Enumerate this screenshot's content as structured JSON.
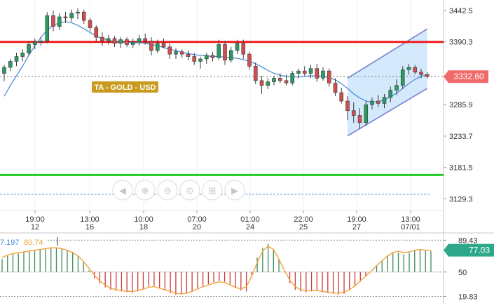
{
  "chart_data": [
    {
      "type": "candlestick",
      "overlay_label": "TA - GOLD - USD",
      "y_ticks": [
        3442.5,
        3390.3,
        3285.9,
        3233.7,
        3181.5,
        3129.3
      ],
      "ylim": [
        3110,
        3460
      ],
      "last_price": "3332.60",
      "resistance_level": 3390.3,
      "support_level": 3169,
      "dashed_level": 3137,
      "x_tick_labels": [
        {
          "time": "19:00",
          "day": "12"
        },
        {
          "time": "13:00",
          "day": "16"
        },
        {
          "time": "10:00",
          "day": "18"
        },
        {
          "time": "07:00",
          "day": "20"
        },
        {
          "time": "01:00",
          "day": "24"
        },
        {
          "time": "22:00",
          "day": "25"
        },
        {
          "time": "19:00",
          "day": "27"
        },
        {
          "time": "13:00",
          "day": "07/01"
        }
      ],
      "ohlc": [
        [
          3338,
          3352,
          3325,
          3348
        ],
        [
          3348,
          3362,
          3342,
          3358
        ],
        [
          3358,
          3372,
          3350,
          3366
        ],
        [
          3366,
          3378,
          3358,
          3372
        ],
        [
          3372,
          3392,
          3368,
          3386
        ],
        [
          3386,
          3396,
          3378,
          3390
        ],
        [
          3390,
          3398,
          3384,
          3392
        ],
        [
          3392,
          3440,
          3388,
          3434
        ],
        [
          3434,
          3442,
          3408,
          3416
        ],
        [
          3416,
          3438,
          3410,
          3432
        ],
        [
          3432,
          3440,
          3422,
          3430
        ],
        [
          3430,
          3444,
          3424,
          3438
        ],
        [
          3438,
          3446,
          3428,
          3440
        ],
        [
          3440,
          3444,
          3420,
          3426
        ],
        [
          3426,
          3430,
          3408,
          3414
        ],
        [
          3414,
          3418,
          3390,
          3398
        ],
        [
          3398,
          3406,
          3384,
          3392
        ],
        [
          3392,
          3402,
          3386,
          3396
        ],
        [
          3396,
          3400,
          3382,
          3388
        ],
        [
          3388,
          3398,
          3380,
          3394
        ],
        [
          3394,
          3398,
          3382,
          3386
        ],
        [
          3386,
          3396,
          3380,
          3390
        ],
        [
          3390,
          3402,
          3384,
          3396
        ],
        [
          3396,
          3404,
          3386,
          3392
        ],
        [
          3392,
          3398,
          3368,
          3376
        ],
        [
          3376,
          3394,
          3372,
          3388
        ],
        [
          3388,
          3396,
          3380,
          3382
        ],
        [
          3382,
          3388,
          3362,
          3370
        ],
        [
          3370,
          3380,
          3362,
          3374
        ],
        [
          3374,
          3378,
          3364,
          3370
        ],
        [
          3370,
          3376,
          3360,
          3366
        ],
        [
          3366,
          3372,
          3352,
          3358
        ],
        [
          3358,
          3366,
          3346,
          3362
        ],
        [
          3362,
          3372,
          3354,
          3368
        ],
        [
          3368,
          3374,
          3358,
          3364
        ],
        [
          3364,
          3394,
          3360,
          3386
        ],
        [
          3386,
          3392,
          3352,
          3360
        ],
        [
          3360,
          3382,
          3356,
          3376
        ],
        [
          3376,
          3394,
          3370,
          3388
        ],
        [
          3388,
          3394,
          3362,
          3370
        ],
        [
          3370,
          3374,
          3344,
          3350
        ],
        [
          3350,
          3356,
          3320,
          3326
        ],
        [
          3326,
          3334,
          3304,
          3318
        ],
        [
          3318,
          3330,
          3312,
          3324
        ],
        [
          3324,
          3334,
          3318,
          3330
        ],
        [
          3330,
          3338,
          3322,
          3326
        ],
        [
          3326,
          3336,
          3318,
          3322
        ],
        [
          3322,
          3342,
          3318,
          3338
        ],
        [
          3338,
          3346,
          3330,
          3342
        ],
        [
          3342,
          3350,
          3334,
          3338
        ],
        [
          3338,
          3352,
          3330,
          3346
        ],
        [
          3346,
          3354,
          3324,
          3330
        ],
        [
          3330,
          3348,
          3326,
          3342
        ],
        [
          3342,
          3346,
          3316,
          3322
        ],
        [
          3322,
          3330,
          3300,
          3306
        ],
        [
          3306,
          3314,
          3288,
          3292
        ],
        [
          3292,
          3300,
          3260,
          3276
        ],
        [
          3276,
          3290,
          3256,
          3268
        ],
        [
          3268,
          3280,
          3246,
          3256
        ],
        [
          3256,
          3292,
          3250,
          3286
        ],
        [
          3286,
          3298,
          3278,
          3292
        ],
        [
          3292,
          3302,
          3282,
          3288
        ],
        [
          3288,
          3304,
          3280,
          3298
        ],
        [
          3298,
          3316,
          3290,
          3310
        ],
        [
          3310,
          3328,
          3302,
          3318
        ],
        [
          3318,
          3350,
          3312,
          3344
        ],
        [
          3344,
          3354,
          3336,
          3348
        ],
        [
          3348,
          3352,
          3336,
          3340
        ],
        [
          3340,
          3346,
          3330,
          3336
        ],
        [
          3336,
          3340,
          3330,
          3333
        ]
      ],
      "moving_average": [
        3300,
        3318,
        3334,
        3350,
        3368,
        3384,
        3398,
        3410,
        3418,
        3422,
        3424,
        3422,
        3418,
        3412,
        3406,
        3400,
        3396,
        3393,
        3391,
        3390,
        3389,
        3389,
        3389,
        3388,
        3386,
        3384,
        3381,
        3378,
        3376,
        3373,
        3371,
        3369,
        3368,
        3367,
        3366,
        3366,
        3365,
        3364,
        3363,
        3361,
        3358,
        3354,
        3349,
        3343,
        3338,
        3335,
        3333,
        3332,
        3332,
        3333,
        3334,
        3334,
        3333,
        3331,
        3327,
        3321,
        3313,
        3304,
        3297,
        3292,
        3290,
        3291,
        3294,
        3299,
        3305,
        3313,
        3321,
        3328,
        3333,
        3336
      ],
      "channel": {
        "upper": [
          [
            56,
            3330
          ],
          [
            69,
            3412
          ]
        ],
        "lower": [
          [
            56,
            3234
          ],
          [
            69,
            3313
          ]
        ]
      }
    },
    {
      "type": "bar",
      "indicator_values": [
        "7.197",
        "80.74"
      ],
      "y_ticks": [
        89.43,
        50,
        19.83
      ],
      "ylim": [
        15,
        95
      ],
      "last_value": "77.03",
      "midline": 50,
      "upper_level": 89.43,
      "lower_level": 19.83,
      "histogram": [
        66,
        70,
        72,
        73,
        75,
        76,
        77,
        78,
        79,
        80,
        80,
        79,
        77,
        75,
        70,
        62,
        52,
        42,
        36,
        31,
        28,
        27,
        26,
        25,
        24,
        26,
        29,
        32,
        33,
        30,
        27,
        24,
        22,
        22,
        23,
        26,
        30,
        33,
        35,
        37,
        39,
        38,
        34,
        30,
        27,
        26,
        45,
        68,
        80,
        85,
        78,
        66,
        50,
        36,
        28,
        26,
        25,
        26,
        27,
        25,
        24,
        23,
        22,
        23,
        27,
        32,
        38,
        44,
        50,
        58,
        64,
        70,
        73,
        74,
        72,
        74,
        77,
        78,
        77,
        76
      ],
      "oscillator": [
        68,
        71,
        73,
        74,
        75,
        76,
        77,
        78,
        79,
        80,
        80,
        79,
        77,
        74,
        70,
        63,
        55,
        46,
        39,
        34,
        30,
        28,
        27,
        26,
        26,
        27,
        29,
        31,
        32,
        30,
        28,
        26,
        24,
        23,
        24,
        26,
        29,
        32,
        34,
        36,
        38,
        37,
        34,
        31,
        29,
        32,
        45,
        62,
        76,
        82,
        78,
        66,
        52,
        40,
        32,
        28,
        27,
        27,
        27,
        26,
        25,
        24,
        24,
        25,
        28,
        33,
        39,
        45,
        51,
        58,
        64,
        70,
        74,
        76,
        74,
        75,
        77,
        78,
        77,
        77
      ]
    }
  ],
  "toolbar": {
    "icons": [
      "arrow-left-icon",
      "zoom-in-icon",
      "zoom-out-icon",
      "zoom-reset-icon",
      "zoom-fit-icon",
      "arrow-right-icon"
    ]
  },
  "colors": {
    "resistance": "#ee1c1c",
    "support": "#22cc22",
    "up": "#2a9a62",
    "down": "#d24d4d",
    "ma": "#4d8fd6",
    "channel_fill": "#cde6fb",
    "channel_line": "#7b7fcf",
    "label_bg": "#c99a1e",
    "price_tag": "#f06a6a",
    "osc": "#f2a33a",
    "osc_tag": "#2ea88a"
  }
}
